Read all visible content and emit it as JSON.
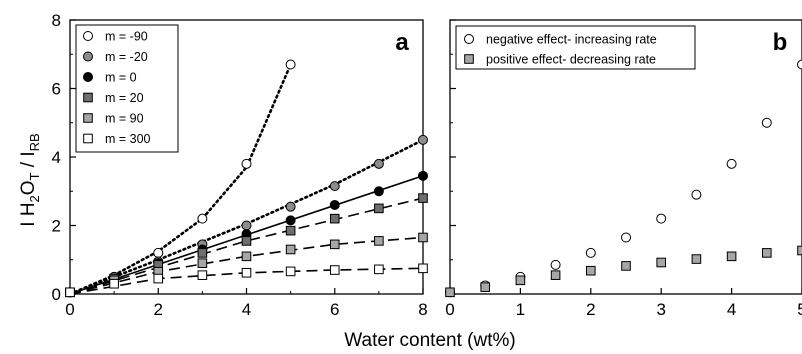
{
  "figure": {
    "xlabel": "Water content (wt%)",
    "ylabel_main": "I H",
    "ylabel_sub1": "2",
    "ylabel_mid": "O",
    "ylabel_sub2": "T",
    "ylabel_sep": " / I",
    "ylabel_sub3": "RB"
  },
  "chart_data": [
    {
      "type": "scatter",
      "panel_label": "a",
      "xlim": [
        0,
        8
      ],
      "ylim": [
        0,
        8
      ],
      "xticks": [
        0,
        2,
        4,
        6,
        8
      ],
      "yticks": [
        0,
        2,
        4,
        6,
        8
      ],
      "grid": false,
      "legend_position": "top-left",
      "series": [
        {
          "name": "m = -90",
          "marker": "circle",
          "fill": "#ffffff",
          "line": "dotted",
          "x": [
            0,
            1,
            2,
            3,
            4,
            5
          ],
          "y": [
            0.05,
            0.5,
            1.2,
            2.2,
            3.8,
            6.7
          ],
          "fit": [
            [
              0,
              0
            ],
            [
              1,
              0.55
            ],
            [
              2,
              1.25
            ],
            [
              3,
              2.2
            ],
            [
              4,
              3.7
            ],
            [
              5,
              6.7
            ]
          ]
        },
        {
          "name": "m = -20",
          "marker": "circle",
          "fill": "#8c8c8c",
          "line": "dotted",
          "x": [
            0,
            1,
            2,
            3,
            4,
            5,
            6,
            7,
            8
          ],
          "y": [
            0.05,
            0.5,
            0.95,
            1.45,
            2.0,
            2.55,
            3.15,
            3.8,
            4.5
          ],
          "fit": [
            [
              0,
              0
            ],
            [
              2,
              1.0
            ],
            [
              4,
              2.05
            ],
            [
              6,
              3.2
            ],
            [
              8,
              4.5
            ]
          ]
        },
        {
          "name": "m = 0",
          "marker": "circle",
          "fill": "#000000",
          "line": "solid",
          "x": [
            0,
            1,
            2,
            3,
            4,
            5,
            6,
            7,
            8
          ],
          "y": [
            0.05,
            0.45,
            0.9,
            1.3,
            1.75,
            2.15,
            2.6,
            3.0,
            3.45
          ],
          "fit": [
            [
              0,
              0
            ],
            [
              8,
              3.45
            ]
          ]
        },
        {
          "name": "m = 20",
          "marker": "square",
          "fill": "#6e6e6e",
          "line": "dashed",
          "x": [
            0,
            1,
            2,
            3,
            4,
            5,
            6,
            7,
            8
          ],
          "y": [
            0.05,
            0.45,
            0.85,
            1.2,
            1.55,
            1.85,
            2.2,
            2.5,
            2.8
          ],
          "fit": [
            [
              0,
              0
            ],
            [
              4,
              1.55
            ],
            [
              8,
              2.8
            ]
          ]
        },
        {
          "name": "m = 90",
          "marker": "square",
          "fill": "#a6a6a6",
          "line": "dashed",
          "x": [
            0,
            1,
            2,
            3,
            4,
            5,
            6,
            7,
            8
          ],
          "y": [
            0.05,
            0.4,
            0.65,
            0.9,
            1.1,
            1.3,
            1.45,
            1.55,
            1.65
          ],
          "fit": [
            [
              0,
              0
            ],
            [
              2,
              0.65
            ],
            [
              4,
              1.1
            ],
            [
              6,
              1.45
            ],
            [
              8,
              1.65
            ]
          ]
        },
        {
          "name": "m = 300",
          "marker": "square",
          "fill": "#ffffff",
          "line": "dashed",
          "x": [
            0,
            1,
            2,
            3,
            4,
            5,
            6,
            7,
            8
          ],
          "y": [
            0.05,
            0.3,
            0.45,
            0.55,
            0.62,
            0.66,
            0.7,
            0.72,
            0.75
          ],
          "fit": [
            [
              0,
              0
            ],
            [
              2,
              0.45
            ],
            [
              4,
              0.62
            ],
            [
              6,
              0.7
            ],
            [
              8,
              0.75
            ]
          ]
        }
      ]
    },
    {
      "type": "scatter",
      "panel_label": "b",
      "xlim": [
        0,
        5
      ],
      "ylim": [
        0,
        8
      ],
      "xticks": [
        0,
        1,
        2,
        3,
        4,
        5
      ],
      "grid": false,
      "legend_position": "top-left",
      "series": [
        {
          "name": "negative effect- increasing rate",
          "marker": "circle",
          "fill": "#ffffff",
          "x": [
            0,
            0.5,
            1,
            1.5,
            2,
            2.5,
            3,
            3.5,
            4,
            4.5,
            5
          ],
          "y": [
            0.05,
            0.25,
            0.5,
            0.85,
            1.2,
            1.65,
            2.2,
            2.9,
            3.8,
            5.0,
            6.7
          ]
        },
        {
          "name": "positive effect- decreasing rate",
          "marker": "square",
          "fill": "#a6a6a6",
          "x": [
            0,
            0.5,
            1,
            1.5,
            2,
            2.5,
            3,
            3.5,
            4,
            4.5,
            5
          ],
          "y": [
            0.05,
            0.2,
            0.4,
            0.55,
            0.68,
            0.82,
            0.92,
            1.02,
            1.1,
            1.2,
            1.27
          ]
        }
      ]
    }
  ]
}
